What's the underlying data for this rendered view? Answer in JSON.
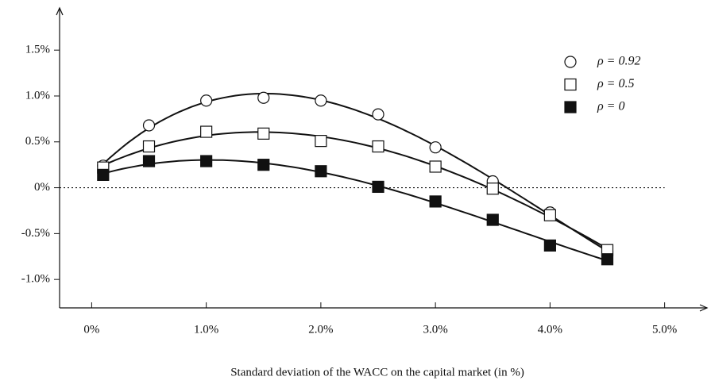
{
  "chart_data": {
    "type": "scatter",
    "x_label": "Standard deviation of the WACC on the capital market (in %)",
    "x": [
      0.1,
      0.5,
      1.0,
      1.5,
      2.0,
      2.5,
      3.0,
      3.5,
      4.0,
      4.5
    ],
    "series": [
      {
        "name": "ρ = 0.92",
        "marker": "circle",
        "color": "#111",
        "values": [
          0.24,
          0.68,
          0.95,
          0.98,
          0.95,
          0.8,
          0.44,
          0.07,
          -0.27,
          -0.7
        ]
      },
      {
        "name": "ρ = 0.5",
        "marker": "square-open",
        "color": "#111",
        "values": [
          0.22,
          0.45,
          0.61,
          0.59,
          0.51,
          0.45,
          0.23,
          -0.01,
          -0.3,
          -0.68
        ]
      },
      {
        "name": "ρ = 0",
        "marker": "square-filled",
        "color": "#111",
        "values": [
          0.14,
          0.29,
          0.29,
          0.25,
          0.18,
          0.01,
          -0.15,
          -0.35,
          -0.63,
          -0.78
        ]
      }
    ],
    "xlim": [
      -0.28,
      5.37
    ],
    "ylim": [
      -1.31,
      1.96
    ],
    "xticks": [
      {
        "value": 0,
        "label": "0%"
      },
      {
        "value": 1,
        "label": "1.0%"
      },
      {
        "value": 2,
        "label": "2.0%"
      },
      {
        "value": 3,
        "label": "3.0%"
      },
      {
        "value": 4,
        "label": "4.0%"
      },
      {
        "value": 5,
        "label": "5.0%"
      }
    ],
    "yticks": [
      {
        "value": -1,
        "label": "-1.0%"
      },
      {
        "value": -0.5,
        "label": "-0.5%"
      },
      {
        "value": 0,
        "label": "0%"
      },
      {
        "value": 0.5,
        "label": "0.5%"
      },
      {
        "value": 1,
        "label": "1.0%"
      },
      {
        "value": 1.5,
        "label": "1.5%"
      }
    ],
    "legend": "upper right"
  }
}
